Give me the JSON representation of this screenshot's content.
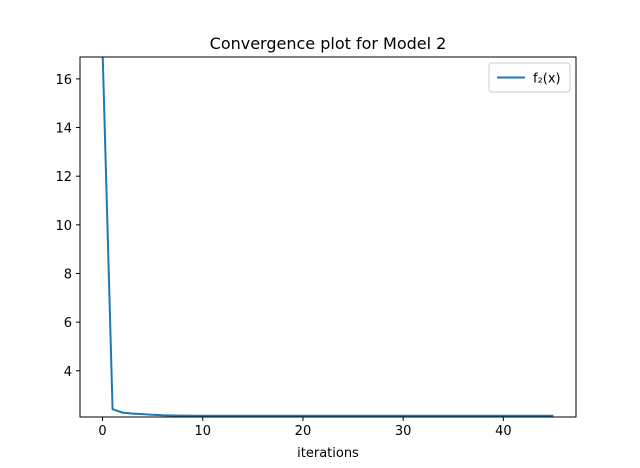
{
  "chart_data": {
    "type": "line",
    "title": "Convergence plot for Model 2",
    "xlabel": "iterations",
    "ylabel": "",
    "xlim": [
      -2.25,
      47.25
    ],
    "ylim": [
      2.1,
      16.9
    ],
    "xticks": [
      0,
      10,
      20,
      30,
      40
    ],
    "yticks": [
      4,
      6,
      8,
      10,
      12,
      14,
      16
    ],
    "grid": false,
    "legend_position": "upper right",
    "series": [
      {
        "name": "f₂(x)",
        "color": "#1f77b4",
        "x": [
          0,
          1,
          2,
          3,
          4,
          5,
          6,
          7,
          8,
          9,
          10,
          11,
          12,
          13,
          14,
          15,
          16,
          17,
          18,
          19,
          20,
          21,
          22,
          23,
          24,
          25,
          26,
          27,
          28,
          29,
          30,
          31,
          32,
          33,
          34,
          35,
          36,
          37,
          38,
          39,
          40,
          41,
          42,
          43,
          44,
          45
        ],
        "y": [
          17.2,
          2.42,
          2.28,
          2.24,
          2.22,
          2.19,
          2.17,
          2.16,
          2.155,
          2.15,
          2.15,
          2.15,
          2.15,
          2.15,
          2.15,
          2.15,
          2.15,
          2.15,
          2.15,
          2.15,
          2.15,
          2.15,
          2.15,
          2.15,
          2.15,
          2.15,
          2.15,
          2.15,
          2.15,
          2.15,
          2.15,
          2.15,
          2.15,
          2.15,
          2.15,
          2.15,
          2.15,
          2.15,
          2.15,
          2.15,
          2.15,
          2.15,
          2.15,
          2.15,
          2.15,
          2.15
        ]
      }
    ]
  }
}
